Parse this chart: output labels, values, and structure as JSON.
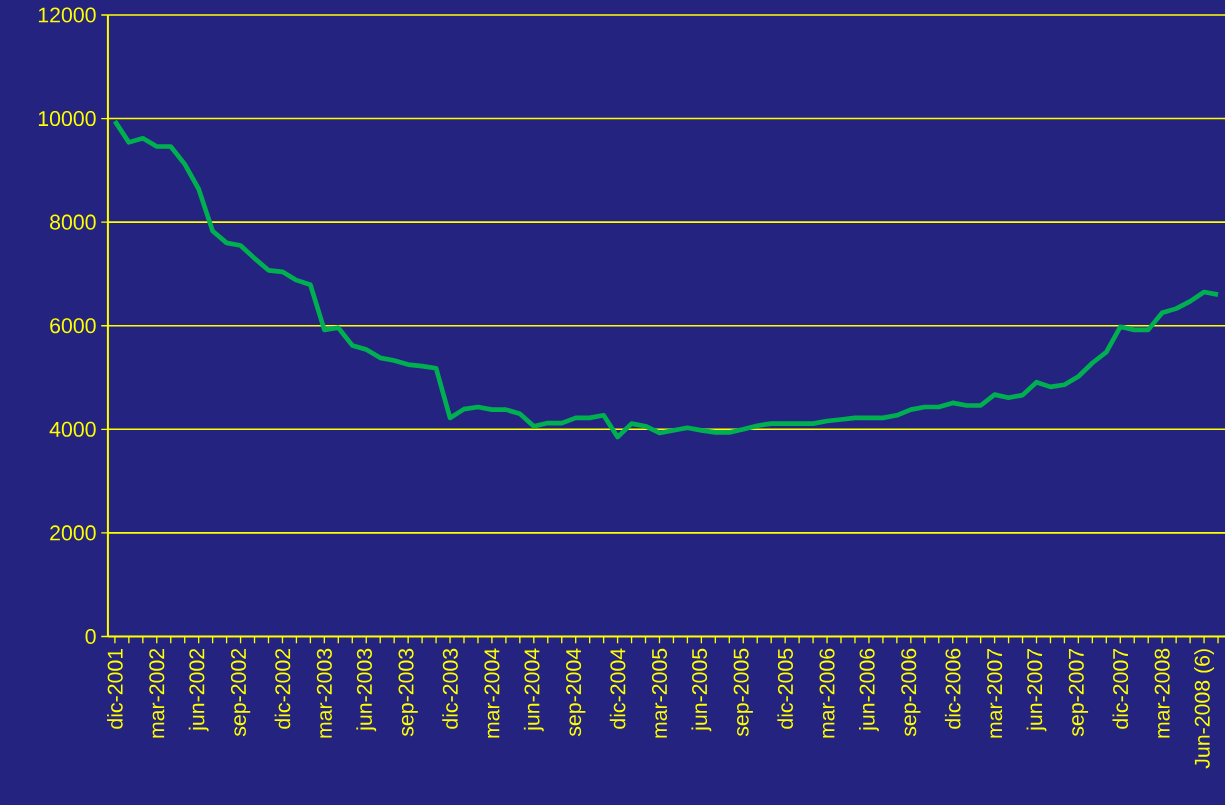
{
  "chart_data": {
    "type": "line",
    "categories": [
      "dic-2001",
      null,
      null,
      "mar-2002",
      null,
      null,
      "jun-2002",
      null,
      null,
      "sep-2002",
      null,
      null,
      "dic-2002",
      null,
      null,
      "mar-2003",
      null,
      null,
      "jun-2003",
      null,
      null,
      "sep-2003",
      null,
      null,
      "dic-2003",
      null,
      null,
      "mar-2004",
      null,
      null,
      "jun-2004",
      null,
      null,
      "sep-2004",
      null,
      null,
      "dic-2004",
      null,
      null,
      "mar-2005",
      null,
      null,
      "jun-2005",
      null,
      null,
      "sep-2005",
      null,
      null,
      "dic-2005",
      null,
      null,
      "mar-2006",
      null,
      null,
      "jun-2006",
      null,
      null,
      "sep-2006",
      null,
      null,
      "dic-2006",
      null,
      null,
      "mar-2007",
      null,
      null,
      "jun-2007",
      null,
      null,
      "sep-2007",
      null,
      null,
      "dic-2007",
      null,
      null,
      "mar-2008",
      null,
      null,
      "Jun-2008 (6)",
      null
    ],
    "series": [
      {
        "color": "#00b050",
        "values": [
          9950,
          9540,
          9620,
          9460,
          9460,
          9120,
          8640,
          7830,
          7600,
          7550,
          7300,
          7070,
          7040,
          6880,
          6790,
          5920,
          5960,
          5620,
          5540,
          5380,
          5330,
          5250,
          5220,
          5180,
          4220,
          4390,
          4430,
          4380,
          4380,
          4300,
          4060,
          4120,
          4120,
          4220,
          4220,
          4270,
          3850,
          4110,
          4060,
          3930,
          3980,
          4030,
          3980,
          3940,
          3940,
          4000,
          4070,
          4110,
          4110,
          4110,
          4110,
          4160,
          4190,
          4220,
          4220,
          4220,
          4270,
          4380,
          4430,
          4430,
          4510,
          4460,
          4460,
          4670,
          4610,
          4660,
          4910,
          4820,
          4860,
          5020,
          5280,
          5490,
          5980,
          5920,
          5920,
          6250,
          6330,
          6470,
          6650,
          6600
        ]
      }
    ],
    "ylim": [
      0,
      12000
    ],
    "yticks": [
      0,
      2000,
      4000,
      6000,
      8000,
      10000,
      12000
    ],
    "grid": "y",
    "marker": "none",
    "line_style": "solid"
  }
}
